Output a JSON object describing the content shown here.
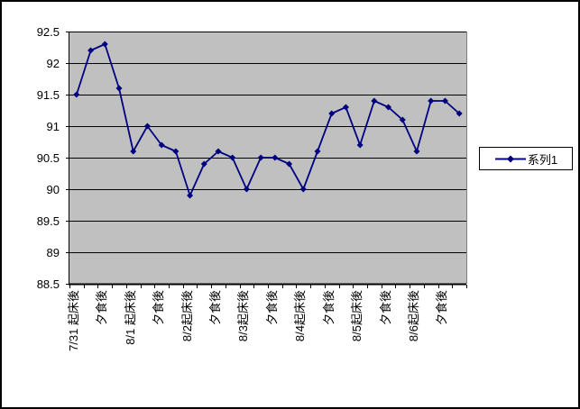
{
  "chart_data": {
    "type": "line",
    "title": "",
    "xlabel": "",
    "ylabel": "",
    "categories": [
      "7/31 起床後",
      "",
      "夕食後",
      "",
      "8/1 起床後",
      "",
      "夕食後",
      "",
      "8/2起床後",
      "",
      "夕食後",
      "",
      "8/3起床後",
      "",
      "夕食後",
      "",
      "8/4起床後",
      "",
      "夕食後",
      "",
      "8/5起床後",
      "",
      "夕食後",
      "",
      "8/6起床後",
      "",
      "夕食後",
      ""
    ],
    "series": [
      {
        "name": "系列1",
        "values": [
          91.5,
          92.2,
          92.3,
          91.6,
          90.6,
          91.0,
          90.7,
          90.6,
          89.9,
          90.4,
          90.6,
          90.5,
          90.0,
          90.5,
          90.5,
          90.4,
          90.0,
          90.6,
          91.2,
          91.3,
          90.7,
          91.4,
          91.3,
          91.1,
          90.6,
          91.4,
          91.4,
          91.2
        ]
      }
    ],
    "ylim": [
      88.5,
      92.5
    ],
    "y_ticks": [
      "92.5",
      "92",
      "91.5",
      "91",
      "90.5",
      "90",
      "89.5",
      "89",
      "88.5"
    ],
    "grid": true,
    "legend_position": "right",
    "marker": "diamond",
    "colors": {
      "series": "#000080",
      "plot_bg": "#c0c0c0",
      "gridline": "#000000",
      "axis": "#000000",
      "plot_edge": "#808080",
      "text": "#000000",
      "background": "#ffffff"
    }
  }
}
